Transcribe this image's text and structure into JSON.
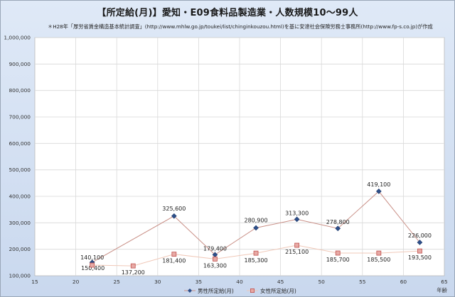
{
  "chart_data": {
    "type": "line",
    "title": "【所定給(月)】愛知・E09食料品製造業・人数規模10～99人",
    "note": "＊H28年「厚労省賃金構造基本統計調査」(http://www.mhlw.go.jp/toukei/list/chinginkouzou.html)を基に安達社会保険労務士事務所(http://www.fp-s.co.jp)が作成",
    "xlabel": "年齢",
    "xlim": [
      15,
      65
    ],
    "ylim": [
      100000,
      1000000
    ],
    "x_ticks": [
      "15",
      "20",
      "25",
      "30",
      "35",
      "40",
      "45",
      "50",
      "55",
      "60",
      "65"
    ],
    "y_ticks": [
      "100,000",
      "200,000",
      "300,000",
      "400,000",
      "500,000",
      "600,000",
      "700,000",
      "800,000",
      "900,000",
      "1,000,000"
    ],
    "grid": true,
    "legend_position": "bottom",
    "series": [
      {
        "name": "男性所定給(月)",
        "color": "#2e4f8a",
        "line_color": "#c98f86",
        "marker": "diamond",
        "x": [
          22,
          32,
          37,
          42,
          47,
          52,
          57,
          62
        ],
        "values": [
          150400,
          325600,
          179400,
          280900,
          313300,
          278800,
          419100,
          226000
        ],
        "labels": [
          "150,400",
          "325,600",
          "179,400",
          "280,900",
          "313,300",
          "278,800",
          "419,100",
          "226,000"
        ]
      },
      {
        "name": "女性所定給(月)",
        "color": "#c0504d",
        "line_color": "#f0c8b8",
        "marker": "square",
        "x": [
          22,
          27,
          32,
          37,
          42,
          47,
          52,
          57,
          62
        ],
        "values": [
          140100,
          137200,
          181400,
          163300,
          185300,
          215100,
          185700,
          185500,
          193500
        ],
        "labels": [
          "140,100",
          "137,200",
          "181,400",
          "163,300",
          "185,300",
          "215,100",
          "185,700",
          "185,500",
          "193,500"
        ]
      }
    ]
  }
}
